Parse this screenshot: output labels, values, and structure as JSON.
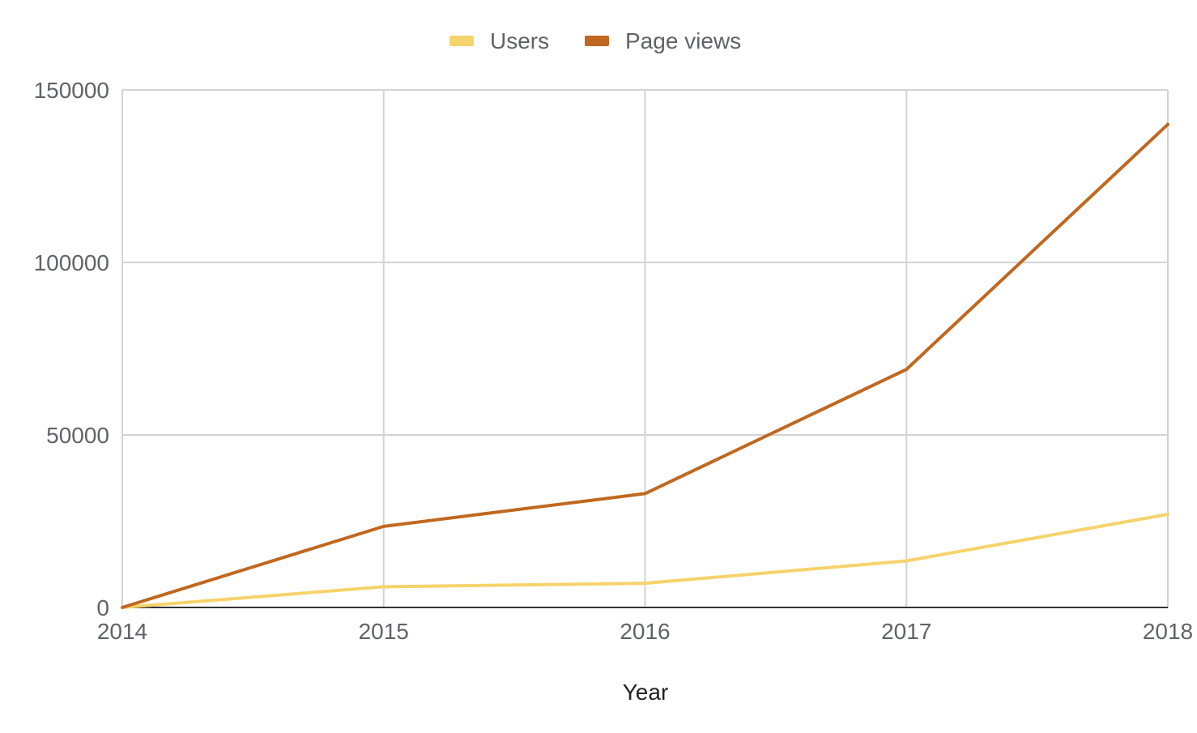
{
  "chart_data": {
    "type": "line",
    "title": "",
    "xlabel": "Year",
    "ylabel": "",
    "x": [
      "2014",
      "2015",
      "2016",
      "2017",
      "2018"
    ],
    "xlim": [
      2014,
      2018
    ],
    "ylim": [
      0,
      150000
    ],
    "yticks": [
      "0",
      "50000",
      "100000",
      "150000"
    ],
    "grid": true,
    "legend_position": "top",
    "series": [
      {
        "name": "Users",
        "color": "#f6d36b",
        "values": [
          0,
          6000,
          7000,
          13500,
          27000
        ]
      },
      {
        "name": "Page views",
        "color": "#c0681f",
        "values": [
          0,
          23500,
          33000,
          69000,
          140000
        ]
      }
    ]
  }
}
